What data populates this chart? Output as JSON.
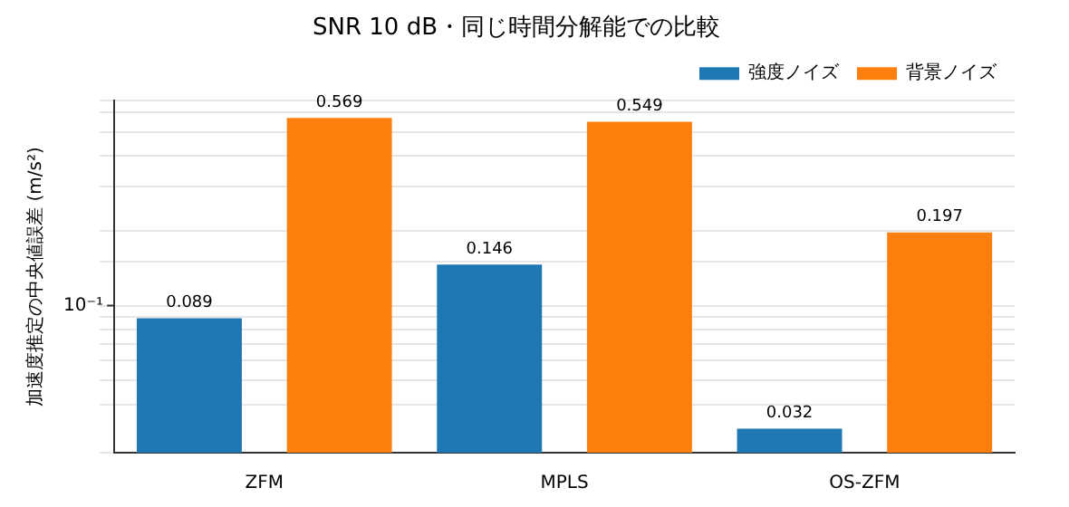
{
  "chart_data": {
    "type": "bar",
    "title": "SNR 10 dB・同じ時間分解能での比較",
    "ylabel": "加速度推定の中央値誤差 (m/s²)",
    "categories": [
      "ZFM",
      "MPLS",
      "OS-ZFM"
    ],
    "series": [
      {
        "name": "強度ノイズ",
        "color": "#1f77b4",
        "values": [
          0.089,
          0.146,
          0.032
        ]
      },
      {
        "name": "背景ノイズ",
        "color": "#ff7f0e",
        "values": [
          0.569,
          0.549,
          0.197
        ]
      }
    ],
    "log": true,
    "ylim": [
      0.0256,
      0.667
    ],
    "annotations": [
      "10⁻¹"
    ],
    "grid": "y",
    "legend": "top right",
    "data_labels": true
  }
}
